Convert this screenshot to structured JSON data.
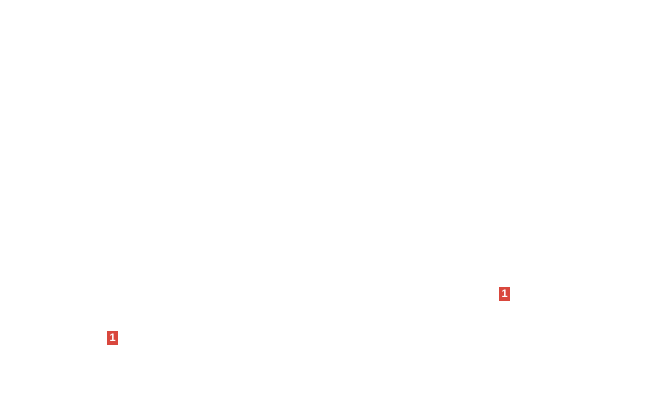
{
  "badges": [
    {
      "label": "1",
      "color": "#d9473d"
    },
    {
      "label": "1",
      "color": "#d9473d"
    }
  ]
}
